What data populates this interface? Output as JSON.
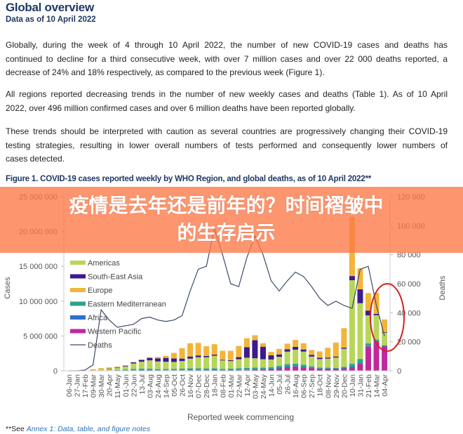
{
  "header": {
    "title": "Global overview",
    "subtitle": "Data as of 10 April 2022"
  },
  "paragraphs": [
    [
      "Globally, during the week of 4 through 10 April 2022, the number of new COVID-19 cases and deaths has",
      "continued to decline for a third consecutive week, with over 7 million cases and over 22 000 deaths reported, a",
      "decrease of 24% and 18% respectively, as compared to the previous week (Figure 1)."
    ],
    [
      "All regions reported decreasing trends in the number of new weekly cases and deaths (Table 1). As of 10 April",
      "2022, over 496 million confirmed cases and over 6 million deaths have been reported globally."
    ],
    [
      "These trends should be interpreted with caution as several countries are progressively changing their COVID-19",
      "testing strategies, resulting in lower overall numbers of tests performed and consequently lower numbers of",
      "cases detected."
    ]
  ],
  "figure_caption": "Figure 1. COVID-19 cases reported weekly by WHO Region, and global deaths, as of 10 April 2022**",
  "banner": {
    "line1": "疫情是去年还是前年的？时间褶皱中",
    "line2": "的生存启示",
    "color": "#fc7846"
  },
  "annotation": {
    "shape": "ellipse",
    "color": "#d62020"
  },
  "footnote": {
    "prefix": "**See ",
    "link": "Annex 1: Data, table, and figure notes"
  },
  "chart_data": {
    "type": "bar",
    "stacked": true,
    "title": "Figure 1. COVID-19 cases reported weekly by WHO Region, and global deaths, as of 10 April 2022**",
    "xlabel": "Reported week commencing",
    "ylabel": "Cases",
    "y2label": "Deaths",
    "ylim": [
      0,
      25000000
    ],
    "y2lim": [
      0,
      120000
    ],
    "yticks": [
      "0",
      "5 000 000",
      "10 000 000",
      "15 000 000",
      "20 000 000",
      "25 000 000"
    ],
    "yticks_values": [
      0,
      5000000,
      10000000,
      15000000,
      20000000,
      25000000
    ],
    "y2ticks": [
      "0",
      "20 000",
      "40 000",
      "60 000",
      "80 000",
      "100 000",
      "120 000"
    ],
    "y2ticks_values": [
      0,
      20000,
      40000,
      60000,
      80000,
      100000,
      120000
    ],
    "legend_position": "top-left",
    "categories": [
      "06-Jan",
      "27-Jan",
      "17-Feb",
      "09-Mar",
      "30-Mar",
      "20-Apr",
      "11-May",
      "01-Jun",
      "22-Jun",
      "13-Jul",
      "03-Aug",
      "24-Aug",
      "14-Sep",
      "05-Oct",
      "26-Oct",
      "16-Nov",
      "07-Dec",
      "28-Dec",
      "18-Jan",
      "08-Feb",
      "01-Mar",
      "22-Mar",
      "12-Apr",
      "03-May",
      "24-May",
      "14-Jun",
      "05-Jul",
      "26-Jul",
      "16-Aug",
      "06-Sep",
      "27-Sep",
      "18-Oct",
      "08-Nov",
      "29-Nov",
      "20-Dec",
      "10-Jan",
      "31-Jan",
      "21-Feb",
      "14-Mar",
      "04-Apr"
    ],
    "series": [
      {
        "name": "Western Pacific",
        "color": "#c0289e",
        "values": [
          0,
          0,
          0,
          0,
          0,
          0,
          0,
          0,
          0,
          20000,
          20000,
          20000,
          20000,
          20000,
          30000,
          40000,
          50000,
          60000,
          60000,
          50000,
          50000,
          60000,
          80000,
          100000,
          150000,
          200000,
          300000,
          500000,
          600000,
          500000,
          400000,
          300000,
          300000,
          250000,
          300000,
          400000,
          1000000,
          3500000,
          4200000,
          3500000
        ]
      },
      {
        "name": "Africa",
        "color": "#2f6fd0",
        "values": [
          0,
          0,
          0,
          0,
          0,
          10000,
          20000,
          30000,
          60000,
          90000,
          100000,
          70000,
          50000,
          50000,
          50000,
          60000,
          80000,
          100000,
          150000,
          80000,
          50000,
          50000,
          50000,
          50000,
          60000,
          120000,
          150000,
          100000,
          80000,
          60000,
          40000,
          30000,
          30000,
          50000,
          150000,
          200000,
          100000,
          50000,
          30000,
          20000
        ]
      },
      {
        "name": "Eastern Mediterranean",
        "color": "#2aa58a",
        "values": [
          0,
          0,
          0,
          20000,
          40000,
          70000,
          100000,
          150000,
          200000,
          200000,
          180000,
          150000,
          180000,
          200000,
          220000,
          250000,
          220000,
          180000,
          160000,
          150000,
          200000,
          250000,
          300000,
          300000,
          250000,
          200000,
          250000,
          350000,
          350000,
          300000,
          200000,
          150000,
          120000,
          100000,
          120000,
          400000,
          600000,
          400000,
          250000,
          150000
        ]
      },
      {
        "name": "Americas",
        "color": "#b8d65a",
        "values": [
          0,
          0,
          0,
          20000,
          100000,
          200000,
          300000,
          450000,
          800000,
          1000000,
          1200000,
          1100000,
          1050000,
          1000000,
          1100000,
          1400000,
          1600000,
          1600000,
          1800000,
          1200000,
          1100000,
          1300000,
          1450000,
          1350000,
          1200000,
          1100000,
          1300000,
          1800000,
          2000000,
          1900000,
          1400000,
          1200000,
          1300000,
          1500000,
          2600000,
          12000000,
          8000000,
          4000000,
          3500000,
          1800000
        ]
      },
      {
        "name": "South-East Asia",
        "color": "#3d1a8e",
        "values": [
          0,
          0,
          0,
          0,
          0,
          10000,
          30000,
          80000,
          150000,
          250000,
          350000,
          450000,
          550000,
          500000,
          350000,
          300000,
          250000,
          180000,
          150000,
          100000,
          120000,
          300000,
          1500000,
          2600000,
          1800000,
          600000,
          350000,
          350000,
          400000,
          300000,
          250000,
          200000,
          150000,
          150000,
          150000,
          600000,
          2000000,
          700000,
          200000,
          100000
        ]
      },
      {
        "name": "Europe",
        "color": "#f2b53a",
        "values": [
          0,
          0,
          50000,
          200000,
          250000,
          200000,
          150000,
          100000,
          50000,
          50000,
          100000,
          200000,
          300000,
          800000,
          1500000,
          1900000,
          1800000,
          1400000,
          1500000,
          1300000,
          1350000,
          1600000,
          1300000,
          700000,
          500000,
          500000,
          800000,
          800000,
          1000000,
          900000,
          700000,
          900000,
          1400000,
          2000000,
          2800000,
          8500000,
          3000000,
          2500000,
          3000000,
          1800000
        ]
      }
    ],
    "legend_order": [
      "Americas",
      "South-East Asia",
      "Europe",
      "Eastern Mediterranean",
      "Africa",
      "Western Pacific",
      "Deaths"
    ],
    "legend_colors": {
      "Americas": "#b8d65a",
      "South-East Asia": "#3d1a8e",
      "Europe": "#f2b53a",
      "Eastern Mediterranean": "#2aa58a",
      "Africa": "#2f6fd0",
      "Western Pacific": "#c0289e"
    },
    "line_series": {
      "name": "Deaths",
      "color": "#3b4a6b",
      "axis": "right",
      "values": [
        0,
        0,
        500,
        4000,
        42000,
        35000,
        30000,
        31000,
        32000,
        36000,
        37000,
        35000,
        34000,
        35000,
        38000,
        55000,
        70000,
        72000,
        98000,
        80000,
        60000,
        58000,
        78000,
        93000,
        80000,
        62000,
        55000,
        62000,
        68000,
        65000,
        58000,
        50000,
        45000,
        48000,
        45000,
        43000,
        70000,
        72000,
        45000,
        24000
      ]
    }
  }
}
